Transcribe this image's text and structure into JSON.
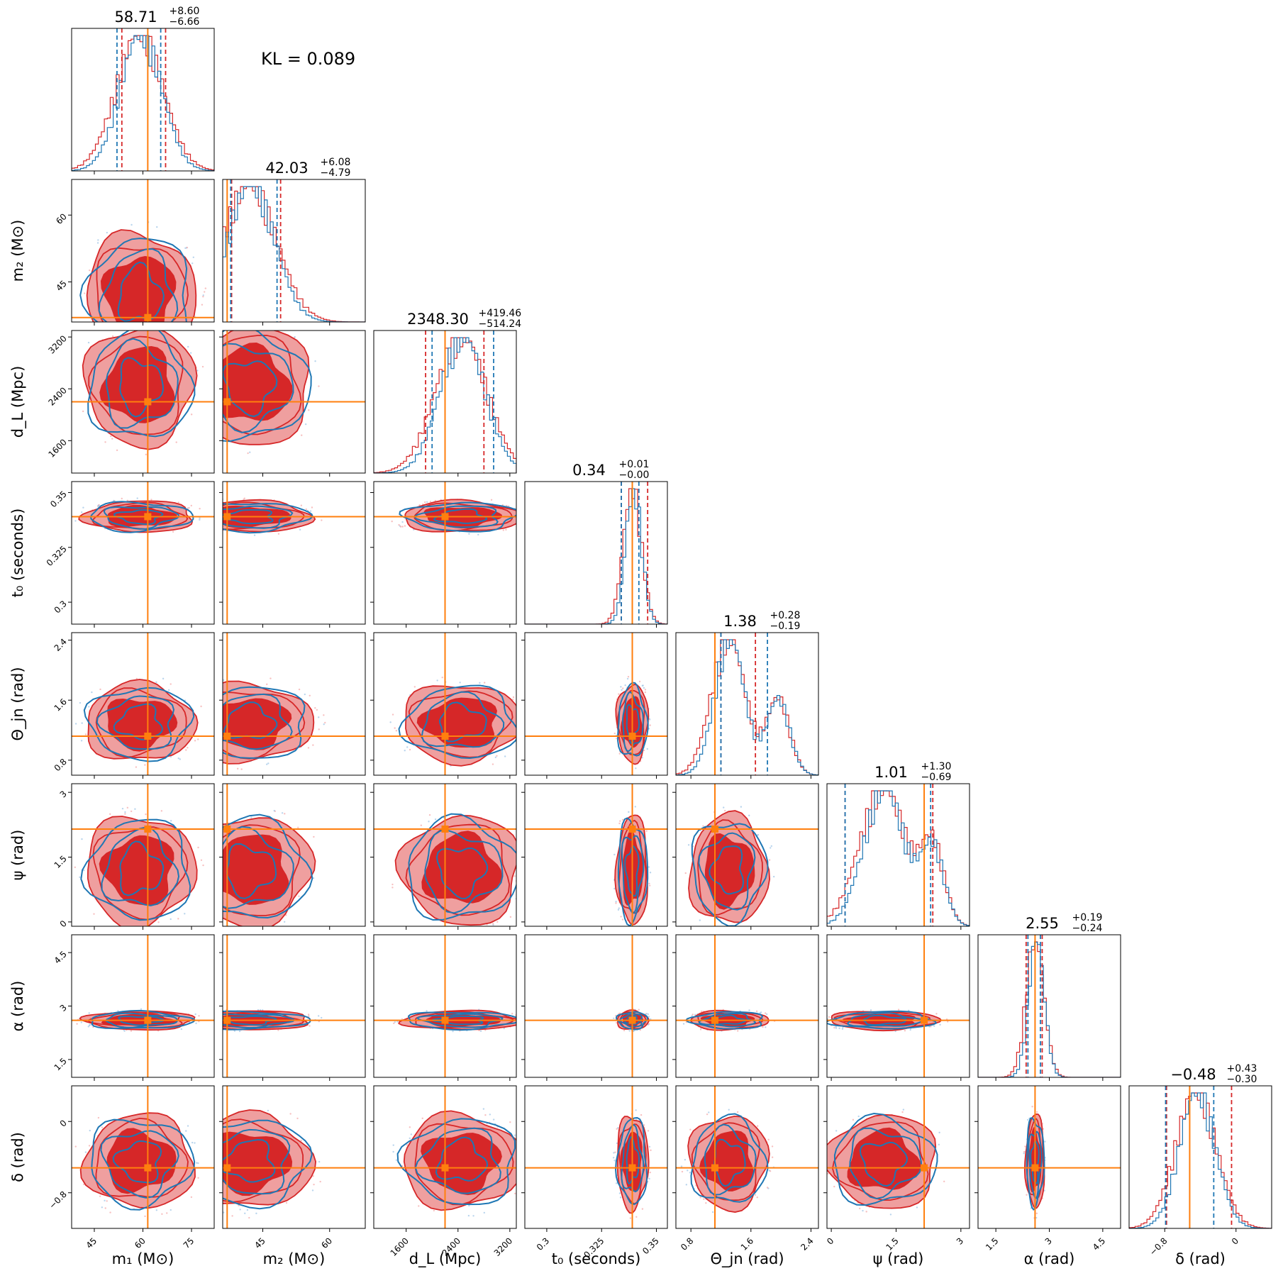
{
  "chart_data": {
    "type": "corner",
    "annotation": "KL = 0.089",
    "colors": {
      "series_a": "#d62728",
      "series_b": "#1f77b4",
      "truth": "#ff7f0e",
      "fill_light": "#ef9f9f"
    },
    "parameters": [
      {
        "key": "m1",
        "label": "m₁ (M⊙)",
        "lim": [
          38,
          82
        ],
        "ticks": [
          45,
          60,
          75
        ],
        "truth": 61.5,
        "title": {
          "median": "58.71",
          "plus": "+8.60",
          "minus": "−6.66"
        },
        "quantiles_a": [
          53.5,
          67.0
        ],
        "quantiles_b": [
          52.0,
          65.5
        ],
        "blob": {
          "center": 59,
          "spread": 0.35
        }
      },
      {
        "key": "m2",
        "label": "m₂ (M⊙)",
        "lim": [
          36,
          68
        ],
        "ticks": [
          45,
          60
        ],
        "truth": 37.0,
        "title": {
          "median": "42.03",
          "plus": "+6.08",
          "minus": "−4.79"
        },
        "quantiles_a": [
          38.0,
          49.0
        ],
        "quantiles_b": [
          37.8,
          48.2
        ],
        "blob": {
          "center": 42,
          "spread": 0.4
        }
      },
      {
        "key": "dL",
        "label": "d_L (Mpc)",
        "lim": [
          1100,
          3300
        ],
        "ticks": [
          1600,
          2400,
          3200
        ],
        "truth": 2200,
        "title": {
          "median": "2348.30",
          "plus": "+419.46",
          "minus": "−514.24"
        },
        "quantiles_a": [
          1900,
          2800
        ],
        "quantiles_b": [
          2000,
          2950
        ],
        "blob": {
          "center": 2450,
          "spread": 0.38
        }
      },
      {
        "key": "t0",
        "label": "t₀ (seconds)",
        "lim": [
          0.29,
          0.355
        ],
        "ticks": [
          0.3,
          0.325,
          0.35
        ],
        "truth": 0.339,
        "title": {
          "median": "0.34",
          "plus": "+0.01",
          "minus": "−0.00"
        },
        "quantiles_a": [
          0.334,
          0.346
        ],
        "quantiles_b": [
          0.334,
          0.342
        ],
        "blob": {
          "center": 0.339,
          "spread": 0.1
        }
      },
      {
        "key": "thetajn",
        "label": "Θ_jn (rad)",
        "lim": [
          0.6,
          2.5
        ],
        "ticks": [
          0.8,
          1.6,
          2.4
        ],
        "truth": 1.12,
        "title": {
          "median": "1.38",
          "plus": "+0.28",
          "minus": "−0.19"
        },
        "quantiles_a": [
          1.2,
          1.66
        ],
        "quantiles_b": [
          1.2,
          1.82
        ],
        "blob": {
          "center": 1.3,
          "spread": 0.25
        }
      },
      {
        "key": "psi",
        "label": "ψ (rad)",
        "lim": [
          -0.1,
          3.2
        ],
        "ticks": [
          0.0,
          1.5,
          3.0
        ],
        "truth": 2.15,
        "title": {
          "median": "1.01",
          "plus": "+1.30",
          "minus": "−0.69"
        },
        "quantiles_a": [
          0.32,
          2.35
        ],
        "quantiles_b": [
          0.32,
          2.3
        ],
        "blob": {
          "center": 1.2,
          "spread": 0.35
        }
      },
      {
        "key": "alpha",
        "label": "α (rad)",
        "lim": [
          1.0,
          5.0
        ],
        "ticks": [
          1.5,
          3.0,
          4.5
        ],
        "truth": 2.6,
        "title": {
          "median": "2.55",
          "plus": "+0.19",
          "minus": "−0.24"
        },
        "quantiles_a": [
          2.35,
          2.8
        ],
        "quantiles_b": [
          2.4,
          2.75
        ],
        "blob": {
          "center": 2.6,
          "spread": 0.06
        }
      },
      {
        "key": "delta",
        "label": "δ (rad)",
        "lim": [
          -1.2,
          0.4
        ],
        "ticks": [
          -0.8,
          0.0
        ],
        "truth": -0.52,
        "title": {
          "median": "−0.48",
          "plus": "+0.43",
          "minus": "−0.30"
        },
        "quantiles_a": [
          -0.78,
          -0.05
        ],
        "quantiles_b": [
          -0.79,
          -0.25
        ],
        "blob": {
          "center": -0.45,
          "spread": 0.3
        }
      }
    ]
  }
}
